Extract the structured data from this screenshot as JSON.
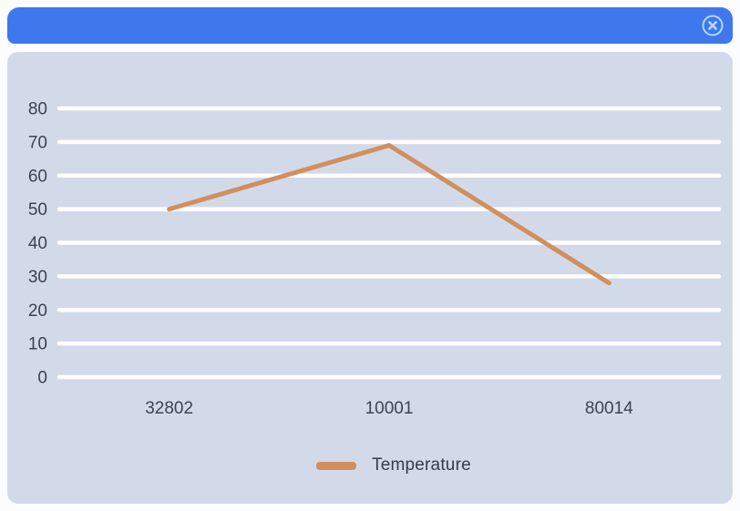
{
  "window": {
    "header": {
      "title": "",
      "close_icon": "circle-x"
    }
  },
  "colors": {
    "page_bg": "#fbfcfe",
    "header_bg": "#3e78ec",
    "panel_bg": "#d2daea",
    "grid_line": "#ffffff",
    "axis_text": "#3c4250",
    "series_line": "#d18f5e",
    "close_icon": "#b5d6f9"
  },
  "chart_data": {
    "type": "line",
    "categories": [
      "32802",
      "10001",
      "80014"
    ],
    "series": [
      {
        "name": "Temperature",
        "color": "#d18f5e",
        "values": [
          50,
          69,
          28
        ]
      }
    ],
    "y_ticks": [
      0,
      10,
      20,
      30,
      40,
      50,
      60,
      70,
      80
    ],
    "ylim": [
      0,
      80
    ],
    "xlabel": "",
    "ylabel": "",
    "title": "",
    "grid": "horizontal",
    "legend_position": "bottom"
  }
}
